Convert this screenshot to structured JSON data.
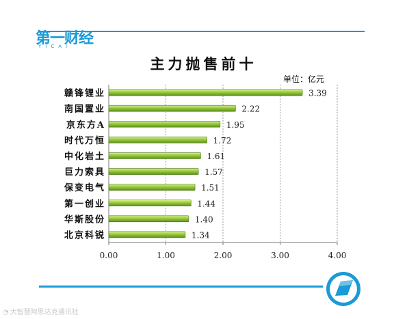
{
  "logo": {
    "brand_text": "第一财经",
    "sub_text": "YICAI",
    "icon": "yicai-logo-icon"
  },
  "watermark": {
    "text": "大智慧阿思达克通讯社",
    "icon": "weibo-icon"
  },
  "badge": {
    "icon": "yicai-badge-icon",
    "color": "#1a9ad6"
  },
  "colors": {
    "accent": "#1a9ad6",
    "bar": "#8cc63f",
    "bar_dark": "#5e8f1f"
  },
  "chart_data": {
    "type": "bar",
    "orientation": "horizontal",
    "title": "主力抛售前十",
    "unit_label": "单位：亿元",
    "categories": [
      "赣锋锂业",
      "南国置业",
      "京东方A",
      "时代万恒",
      "中化岩土",
      "巨力索具",
      "保变电气",
      "第一创业",
      "华斯股份",
      "北京科锐"
    ],
    "values": [
      3.39,
      2.22,
      1.95,
      1.72,
      1.61,
      1.57,
      1.51,
      1.44,
      1.4,
      1.34
    ],
    "data_labels": [
      "3.39",
      "2.22",
      "1.95",
      "1.72",
      "1.61",
      "1.57",
      "1.51",
      "1.44",
      "1.40",
      "1.34"
    ],
    "xlim": [
      0,
      4
    ],
    "x_ticks": [
      0,
      1,
      2,
      3,
      4
    ],
    "x_tick_labels": [
      "0.00",
      "1.00",
      "2.00",
      "3.00",
      "4.00"
    ],
    "grid": "vertical-dashed",
    "legend": "none"
  }
}
